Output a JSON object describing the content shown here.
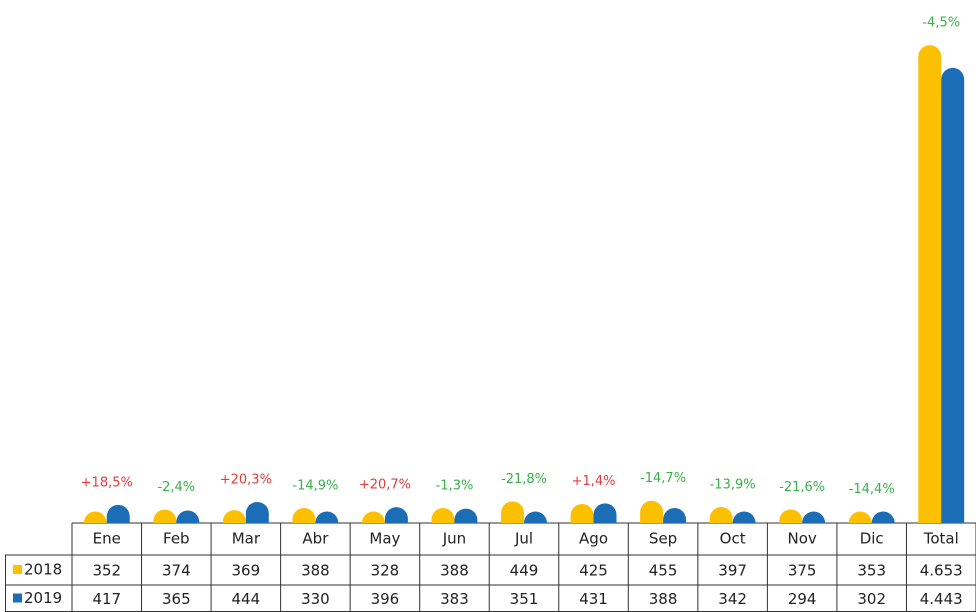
{
  "chart_data": {
    "type": "bar",
    "categories": [
      "Ene",
      "Feb",
      "Mar",
      "Abr",
      "May",
      "Jun",
      "Jul",
      "Ago",
      "Sep",
      "Oct",
      "Nov",
      "Dic",
      "Total"
    ],
    "series": [
      {
        "name": "2018",
        "color": "#fcc000",
        "values": [
          352,
          374,
          369,
          388,
          328,
          388,
          449,
          425,
          455,
          397,
          375,
          353,
          4653
        ],
        "value_labels": [
          "352",
          "374",
          "369",
          "388",
          "328",
          "388",
          "449",
          "425",
          "455",
          "397",
          "375",
          "353",
          "4.653"
        ]
      },
      {
        "name": "2019",
        "color": "#1b6db5",
        "values": [
          417,
          365,
          444,
          330,
          396,
          383,
          351,
          431,
          388,
          342,
          294,
          302,
          4443
        ],
        "value_labels": [
          "417",
          "365",
          "444",
          "330",
          "396",
          "383",
          "351",
          "431",
          "388",
          "342",
          "294",
          "302",
          "4.443"
        ]
      }
    ],
    "change_labels": [
      "+18,5%",
      "-2,4%",
      "+20,3%",
      "-14,9%",
      "+20,7%",
      "-1,3%",
      "-21,8%",
      "+1,4%",
      "-14,7%",
      "-13,9%",
      "-21,6%",
      "-14,4%",
      "-4,5%"
    ],
    "increase_color": "#e03c3c",
    "decrease_color": "#3cae4a",
    "ylim": [
      250,
      4700
    ]
  }
}
